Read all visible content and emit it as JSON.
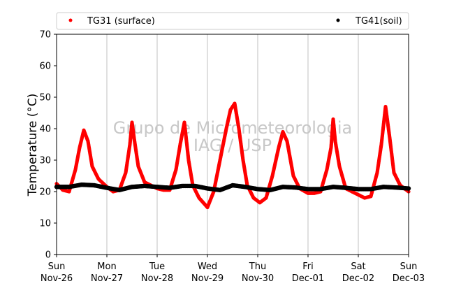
{
  "chart_data": {
    "type": "scatter",
    "title": "",
    "xlabel": "",
    "ylabel": "Temperature (°C)",
    "ylim": [
      0,
      70
    ],
    "yticks": [
      0,
      10,
      20,
      30,
      40,
      50,
      60,
      70
    ],
    "xlim": [
      "2017-11-26 00:00",
      "2017-12-03 00:00"
    ],
    "xticks": [
      {
        "day": "Sun",
        "date": "Nov-26"
      },
      {
        "day": "Mon",
        "date": "Nov-27"
      },
      {
        "day": "Tue",
        "date": "Nov-28"
      },
      {
        "day": "Wed",
        "date": "Nov-29"
      },
      {
        "day": "Thu",
        "date": "Nov-30"
      },
      {
        "day": "Fri",
        "date": "Dec-01"
      },
      {
        "day": "Sat",
        "date": "Dec-02"
      },
      {
        "day": "Sun",
        "date": "Dec-03"
      }
    ],
    "grid": "x",
    "legend_position": "top",
    "watermark": [
      "Grupo de Micrometeorologia",
      "IAG / USP"
    ],
    "series": [
      {
        "name": "TG31 (surface)",
        "color": "#ff0000",
        "marker": "circle",
        "points": [
          [
            "2017-11-26 00:00",
            22.5
          ],
          [
            "2017-11-26 03:00",
            20.5
          ],
          [
            "2017-11-26 06:00",
            20.0
          ],
          [
            "2017-11-26 09:00",
            27.0
          ],
          [
            "2017-11-26 11:00",
            34.0
          ],
          [
            "2017-11-26 13:00",
            39.5
          ],
          [
            "2017-11-26 15:00",
            36.0
          ],
          [
            "2017-11-26 17:00",
            28.0
          ],
          [
            "2017-11-26 20:00",
            24.0
          ],
          [
            "2017-11-27 00:00",
            21.5
          ],
          [
            "2017-11-27 03:00",
            20.0
          ],
          [
            "2017-11-27 06:00",
            20.5
          ],
          [
            "2017-11-27 09:00",
            26.0
          ],
          [
            "2017-11-27 11:00",
            35.0
          ],
          [
            "2017-11-27 12:00",
            42.0
          ],
          [
            "2017-11-27 13:00",
            37.0
          ],
          [
            "2017-11-27 15:00",
            28.0
          ],
          [
            "2017-11-27 18:00",
            23.0
          ],
          [
            "2017-11-28 00:00",
            21.0
          ],
          [
            "2017-11-28 03:00",
            20.5
          ],
          [
            "2017-11-28 06:00",
            20.5
          ],
          [
            "2017-11-28 09:00",
            27.0
          ],
          [
            "2017-11-28 11:00",
            35.0
          ],
          [
            "2017-11-28 13:00",
            42.0
          ],
          [
            "2017-11-28 15:00",
            30.0
          ],
          [
            "2017-11-28 17:00",
            22.0
          ],
          [
            "2017-11-28 20:00",
            18.0
          ],
          [
            "2017-11-29 00:00",
            15.0
          ],
          [
            "2017-11-29 03:00",
            20.0
          ],
          [
            "2017-11-29 06:00",
            30.0
          ],
          [
            "2017-11-29 09:00",
            40.0
          ],
          [
            "2017-11-29 11:00",
            46.0
          ],
          [
            "2017-11-29 13:00",
            48.0
          ],
          [
            "2017-11-29 15:00",
            40.0
          ],
          [
            "2017-11-29 17:00",
            30.0
          ],
          [
            "2017-11-29 19:00",
            22.0
          ],
          [
            "2017-11-29 22:00",
            18.0
          ],
          [
            "2017-11-30 01:00",
            16.5
          ],
          [
            "2017-11-30 04:00",
            18.0
          ],
          [
            "2017-11-30 07:00",
            25.0
          ],
          [
            "2017-11-30 10:00",
            34.0
          ],
          [
            "2017-11-30 12:00",
            39.0
          ],
          [
            "2017-11-30 14:00",
            36.0
          ],
          [
            "2017-11-30 17:00",
            25.0
          ],
          [
            "2017-11-30 20:00",
            21.0
          ],
          [
            "2017-12-01 00:00",
            19.5
          ],
          [
            "2017-12-01 03:00",
            19.5
          ],
          [
            "2017-12-01 06:00",
            20.0
          ],
          [
            "2017-12-01 09:00",
            27.0
          ],
          [
            "2017-12-01 11:00",
            34.0
          ],
          [
            "2017-12-01 12:00",
            43.0
          ],
          [
            "2017-12-01 13:00",
            36.0
          ],
          [
            "2017-12-01 15:00",
            28.0
          ],
          [
            "2017-12-01 18:00",
            21.0
          ],
          [
            "2017-12-02 00:00",
            19.0
          ],
          [
            "2017-12-02 03:00",
            18.0
          ],
          [
            "2017-12-02 06:00",
            18.5
          ],
          [
            "2017-12-02 09:00",
            26.0
          ],
          [
            "2017-12-02 11:00",
            35.0
          ],
          [
            "2017-12-02 13:00",
            47.0
          ],
          [
            "2017-12-02 15:00",
            37.0
          ],
          [
            "2017-12-02 17:00",
            26.0
          ],
          [
            "2017-12-02 20:00",
            22.0
          ],
          [
            "2017-12-03 00:00",
            20.0
          ]
        ]
      },
      {
        "name": "TG41(soil)",
        "color": "#000000",
        "marker": "circle",
        "points": [
          [
            "2017-11-26 00:00",
            21.5
          ],
          [
            "2017-11-26 06:00",
            21.5
          ],
          [
            "2017-11-26 12:00",
            22.2
          ],
          [
            "2017-11-26 18:00",
            22.0
          ],
          [
            "2017-11-27 00:00",
            21.2
          ],
          [
            "2017-11-27 06:00",
            20.5
          ],
          [
            "2017-11-27 12:00",
            21.5
          ],
          [
            "2017-11-27 18:00",
            21.8
          ],
          [
            "2017-11-28 00:00",
            21.5
          ],
          [
            "2017-11-28 06:00",
            21.2
          ],
          [
            "2017-11-28 12:00",
            21.8
          ],
          [
            "2017-11-28 18:00",
            21.8
          ],
          [
            "2017-11-29 00:00",
            21.0
          ],
          [
            "2017-11-29 06:00",
            20.5
          ],
          [
            "2017-11-29 12:00",
            22.0
          ],
          [
            "2017-11-29 18:00",
            21.5
          ],
          [
            "2017-11-30 00:00",
            20.8
          ],
          [
            "2017-11-30 06:00",
            20.5
          ],
          [
            "2017-11-30 12:00",
            21.5
          ],
          [
            "2017-11-30 18:00",
            21.3
          ],
          [
            "2017-12-01 00:00",
            20.8
          ],
          [
            "2017-12-01 06:00",
            20.8
          ],
          [
            "2017-12-01 12:00",
            21.5
          ],
          [
            "2017-12-01 18:00",
            21.2
          ],
          [
            "2017-12-02 00:00",
            20.8
          ],
          [
            "2017-12-02 06:00",
            20.8
          ],
          [
            "2017-12-02 12:00",
            21.5
          ],
          [
            "2017-12-02 18:00",
            21.3
          ],
          [
            "2017-12-03 00:00",
            21.0
          ]
        ]
      }
    ]
  }
}
